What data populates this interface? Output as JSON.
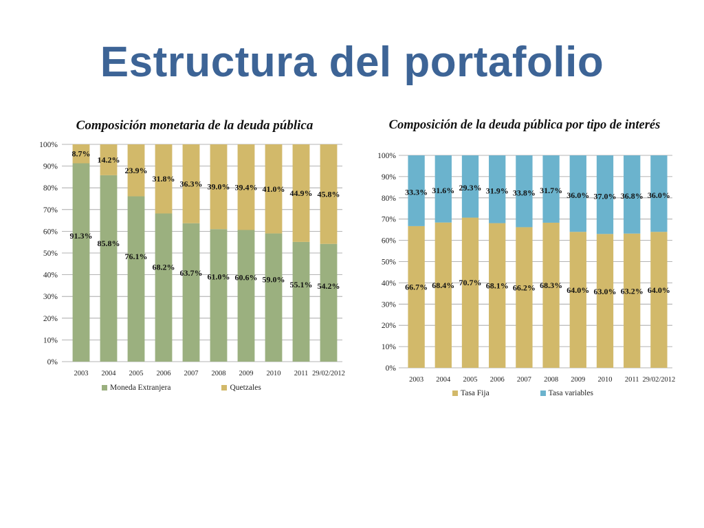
{
  "slide": {
    "title": "Estructura del portafolio"
  },
  "chart_data": [
    {
      "type": "bar",
      "stacked": true,
      "title": "Composición monetaria de la deuda pública",
      "xlabel": "",
      "ylabel": "",
      "ylim": [
        0,
        100
      ],
      "yticks": [
        "0%",
        "10%",
        "20%",
        "30%",
        "40%",
        "50%",
        "60%",
        "70%",
        "80%",
        "90%",
        "100%"
      ],
      "categories": [
        "2003",
        "2004",
        "2005",
        "2006",
        "2007",
        "2008",
        "2009",
        "2010",
        "2011",
        "29/02/2012"
      ],
      "series": [
        {
          "name": "Moneda Extranjera",
          "color": "#9BB07F",
          "values": [
            91.3,
            85.8,
            76.1,
            68.2,
            63.7,
            61.0,
            60.6,
            59.0,
            55.1,
            54.2
          ],
          "labels": [
            "91.3%",
            "85.8%",
            "76.1%",
            "68.2%",
            "63.7%",
            "61.0%",
            "60.6%",
            "59.0%",
            "55.1%",
            "54.2%"
          ]
        },
        {
          "name": "Quetzales",
          "color": "#D2B96A",
          "values": [
            8.7,
            14.2,
            23.9,
            31.8,
            36.3,
            39.0,
            39.4,
            41.0,
            44.9,
            45.8
          ],
          "labels": [
            "8.7%",
            "14.2%",
            "23.9%",
            "31.8%",
            "36.3%",
            "39.0%",
            "39.4%",
            "41.0%",
            "44.9%",
            "45.8%"
          ]
        }
      ],
      "grid": true,
      "legend": "bottom"
    },
    {
      "type": "bar",
      "stacked": true,
      "title": "Composición de la deuda pública por tipo de interés",
      "xlabel": "",
      "ylabel": "",
      "ylim": [
        0,
        100
      ],
      "yticks": [
        "0%",
        "10%",
        "20%",
        "30%",
        "40%",
        "50%",
        "60%",
        "70%",
        "80%",
        "90%",
        "100%"
      ],
      "categories": [
        "2003",
        "2004",
        "2005",
        "2006",
        "2007",
        "2008",
        "2009",
        "2010",
        "2011",
        "29/02/2012"
      ],
      "series": [
        {
          "name": "Tasa Fija",
          "color": "#D2B96A",
          "values": [
            66.7,
            68.4,
            70.7,
            68.1,
            66.2,
            68.3,
            64.0,
            63.0,
            63.2,
            64.0
          ],
          "labels": [
            "66.7%",
            "68.4%",
            "70.7%",
            "68.1%",
            "66.2%",
            "68.3%",
            "64.0%",
            "63.0%",
            "63.2%",
            "64.0%"
          ]
        },
        {
          "name": "Tasa variables",
          "color": "#6BB3CD",
          "values": [
            33.3,
            31.6,
            29.3,
            31.9,
            33.8,
            31.7,
            36.0,
            37.0,
            36.8,
            36.0
          ],
          "labels": [
            "33.3%",
            "31.6%",
            "29.3%",
            "31.9%",
            "33.8%",
            "31.7%",
            "36.0%",
            "37.0%",
            "36.8%",
            "36.0%"
          ]
        }
      ],
      "grid": true,
      "legend": "bottom"
    }
  ]
}
